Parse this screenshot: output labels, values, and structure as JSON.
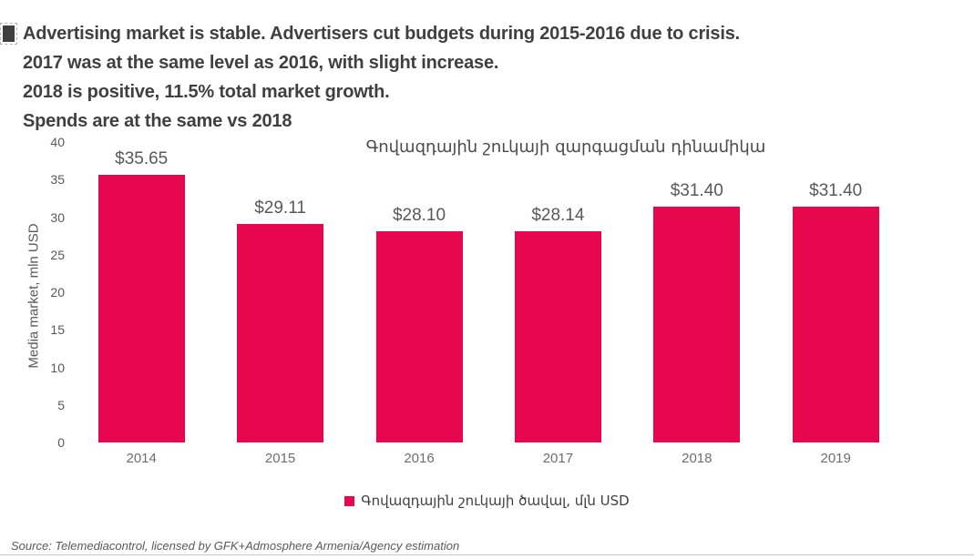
{
  "header": {
    "lines": [
      "Advertising market is stable. Advertisers cut budgets during 2015-2016 due to crisis.",
      "2017 was at the same level as 2016, with slight increase.",
      "2018 is positive, 11.5% total market growth.",
      "Spends are at the same vs 2018"
    ]
  },
  "chart_data": {
    "type": "bar",
    "title": "Գովազդային շուկայի զարգացման դինամիկա",
    "categories": [
      "2014",
      "2015",
      "2016",
      "2017",
      "2018",
      "2019"
    ],
    "values": [
      35.65,
      29.11,
      28.1,
      28.14,
      31.4,
      31.4
    ],
    "data_labels": [
      "$35.65",
      "$29.11",
      "$28.10",
      "$28.14",
      "$31.40",
      "$31.40"
    ],
    "xlabel": "",
    "ylabel": "Media market, mln USD",
    "ylim": [
      0,
      40
    ],
    "yticks": [
      0,
      5,
      10,
      15,
      20,
      25,
      30,
      35,
      40
    ],
    "grid": false,
    "bar_color": "#E6074F",
    "legend": {
      "position": "bottom",
      "entries": [
        {
          "label": "Գովազդային շուկայի ծավալ, մլն USD",
          "color": "#E6074F"
        }
      ]
    }
  },
  "footer": {
    "source": "Source: Telemediacontrol, licensed by GFK+Admosphere Armenia/Agency estimation"
  }
}
